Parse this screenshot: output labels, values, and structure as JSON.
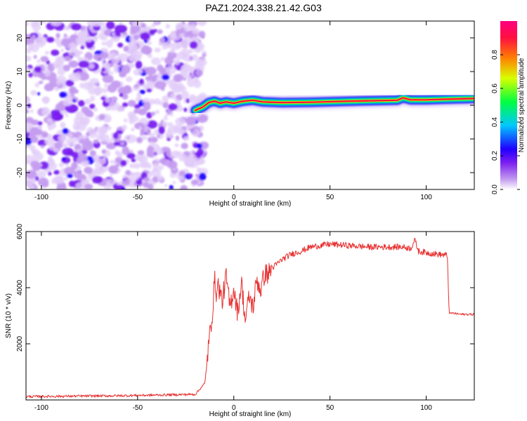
{
  "title": "PAZ1.2024.338.21.42.G03",
  "chart_data": [
    {
      "type": "heatmap",
      "xlabel": "Height of straight line (km)",
      "ylabel": "Frequency (Hz)",
      "xlim": [
        -108,
        125
      ],
      "ylim": [
        -25,
        25
      ],
      "xticks": [
        -100,
        -50,
        0,
        50,
        100
      ],
      "yticks": [
        -20,
        -10,
        0,
        10,
        20
      ],
      "colorbar": {
        "label": "Normalized spectral amplitude",
        "range": [
          0,
          1
        ],
        "ticks": [
          "0.0",
          "0.2",
          "0.4",
          "0.6",
          "0.8"
        ],
        "colors": [
          "#ffffff",
          "#c49cf0",
          "#7a1ef0",
          "#2000ff",
          "#00c8ff",
          "#00ff40",
          "#d8ff00",
          "#ff8000",
          "#ff1040",
          "#ff007f"
        ]
      },
      "noise_region_x": [
        -108,
        -18
      ],
      "signal_centerline": {
        "x": [
          -20,
          -16,
          -13,
          -10,
          -7,
          -4,
          0,
          5,
          10,
          15,
          25,
          40,
          60,
          85,
          88,
          92,
          100,
          110,
          125
        ],
        "freq": [
          -1.5,
          -0.5,
          0.8,
          1.2,
          0.6,
          1.0,
          0.6,
          1.2,
          1.5,
          1.0,
          0.8,
          0.9,
          1.2,
          1.5,
          2.2,
          1.6,
          1.6,
          1.8,
          2.0
        ]
      }
    },
    {
      "type": "line",
      "xlabel": "Height of straight line (km)",
      "ylabel": "SNR (10 * v/v)",
      "xlim": [
        -108,
        125
      ],
      "ylim": [
        0,
        6000
      ],
      "xticks": [
        -100,
        -50,
        0,
        50,
        100
      ],
      "yticks": [
        2000,
        4000,
        6000
      ],
      "color": "#e83030",
      "series": [
        {
          "x": [
            -108,
            -60,
            -20,
            -15,
            -13,
            -11,
            -10,
            -9,
            -8,
            -6,
            -4,
            -2,
            0,
            2,
            4,
            6,
            8,
            10,
            12,
            14,
            16,
            18,
            20,
            25,
            30,
            35,
            40,
            50,
            60,
            70,
            80,
            88,
            92,
            94,
            96,
            100,
            105,
            111,
            112,
            113,
            118,
            125
          ],
          "y": [
            120,
            150,
            200,
            600,
            2000,
            3200,
            4300,
            3800,
            4100,
            3500,
            4400,
            3300,
            4000,
            3100,
            4200,
            2800,
            3700,
            3300,
            4300,
            3900,
            4500,
            4500,
            4700,
            5000,
            5200,
            5300,
            5450,
            5550,
            5500,
            5450,
            5450,
            5450,
            5400,
            5700,
            5300,
            5250,
            5200,
            5150,
            3050,
            3100,
            3050,
            3050
          ]
        }
      ]
    }
  ]
}
